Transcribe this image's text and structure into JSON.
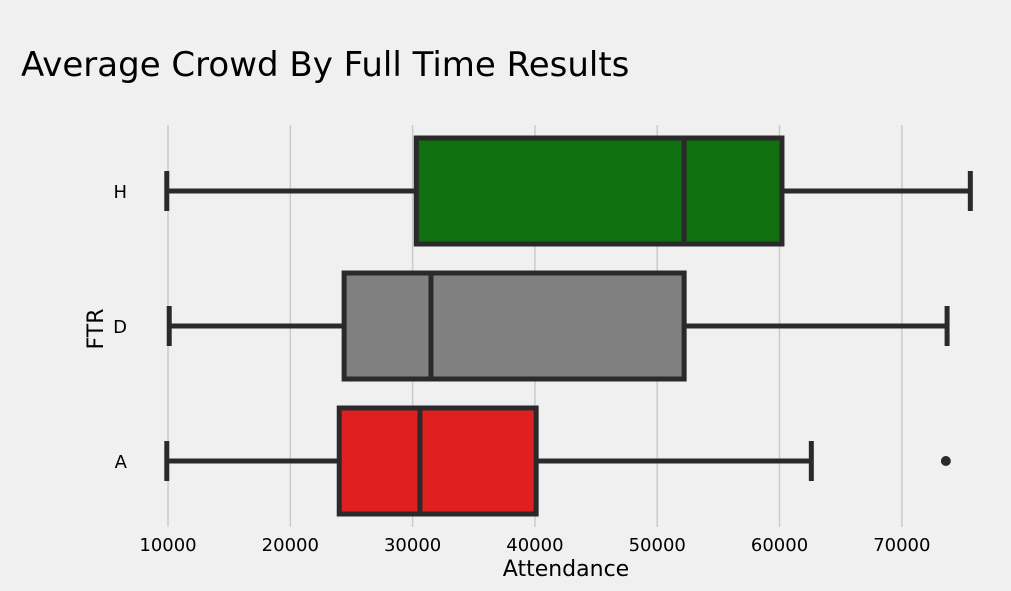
{
  "chart_data": {
    "type": "boxplot",
    "orientation": "horizontal",
    "title": "Average Crowd By Full Time Results",
    "xlabel": "Attendance",
    "ylabel": "FTR",
    "xlim": [
      8200,
      76800
    ],
    "x_ticks": [
      10000,
      20000,
      30000,
      40000,
      50000,
      60000,
      70000
    ],
    "x_tick_labels": [
      "10000",
      "20000",
      "30000",
      "40000",
      "50000",
      "60000",
      "70000"
    ],
    "grid": "vertical",
    "categories": [
      "H",
      "D",
      "A"
    ],
    "boxes": [
      {
        "category": "H",
        "min": 9900,
        "q1": 30300,
        "median": 52200,
        "q3": 60200,
        "max": 75600,
        "outliers": [],
        "color": "#107010"
      },
      {
        "category": "D",
        "min": 10100,
        "q1": 24400,
        "median": 31500,
        "q3": 52200,
        "max": 73700,
        "outliers": [],
        "color": "#808080"
      },
      {
        "category": "A",
        "min": 9900,
        "q1": 24000,
        "median": 30600,
        "q3": 40100,
        "max": 62600,
        "outliers": [
          73600
        ],
        "color": "#e02020"
      }
    ]
  },
  "colors": {
    "background": "#f0f0f0",
    "grid": "#cbcbcb",
    "edge": "#2a2a2a"
  }
}
